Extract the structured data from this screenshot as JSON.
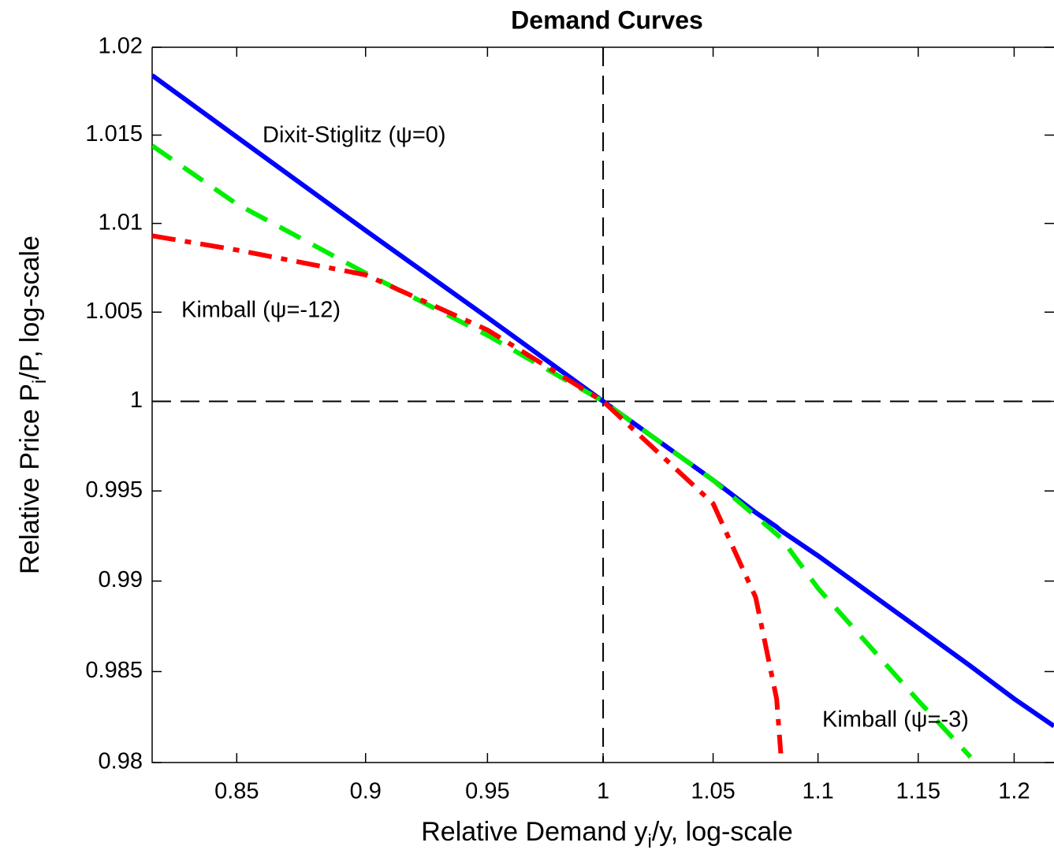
{
  "chart_data": {
    "type": "line",
    "title": "Demand Curves",
    "xlabel": [
      "Relative Demand y",
      "i",
      "/y, log-scale"
    ],
    "ylabel": [
      "Relative Price P",
      "i",
      "/P, log-scale"
    ],
    "x": [
      0.8187,
      0.85,
      0.9,
      0.95,
      1,
      1.05,
      1.07,
      1.08,
      1.082,
      1.1,
      1.15,
      1.177,
      1.2,
      1.2214
    ],
    "series": [
      {
        "name": "Dixit-Stiglitz (ψ=0)",
        "color": "#0000ff",
        "dash": "solid",
        "values": [
          1.0184,
          1.0149,
          1.0096,
          1.0047,
          1,
          0.9956,
          0.9938,
          0.993,
          0.9928,
          0.9914,
          0.9874,
          0.9853,
          0.9835,
          0.982
        ]
      },
      {
        "name": "Kimball (ψ=-3)",
        "color": "#00ee00",
        "dash": "dashed",
        "values": [
          1.0144,
          1.0111,
          1.0072,
          1.0037,
          1,
          0.9956,
          0.9936,
          0.9926,
          0.9924,
          0.9896,
          0.9834,
          0.9803,
          null,
          null
        ]
      },
      {
        "name": "Kimball (ψ=-12)",
        "color": "#ff0000",
        "dash": "dashdot",
        "values": [
          1.0093,
          1.0085,
          1.0071,
          1.004,
          1,
          0.9943,
          0.9891,
          0.9835,
          0.9805,
          null,
          null,
          null,
          null,
          null
        ]
      }
    ],
    "xlim": [
      0.8187,
      1.2214
    ],
    "ylim": [
      0.98,
      1.02
    ],
    "xticks": [
      0.85,
      0.9,
      0.95,
      1,
      1.05,
      1.1,
      1.15,
      1.2
    ],
    "yticks": [
      0.98,
      0.985,
      0.99,
      0.995,
      1,
      1.005,
      1.01,
      1.015,
      1.02
    ],
    "xscale": "log",
    "yscale": "log",
    "reference_lines": {
      "x": 1,
      "y": 1
    }
  }
}
